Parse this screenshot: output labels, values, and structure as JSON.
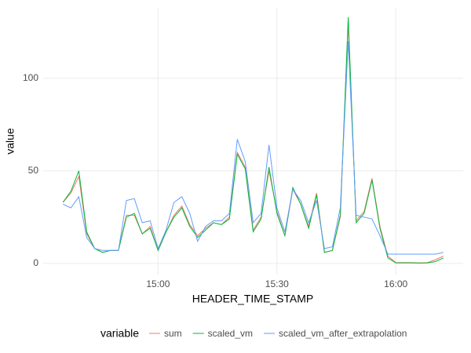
{
  "chart_data": {
    "type": "line",
    "x_label": "HEADER_TIME_STAMP",
    "y_label": "value",
    "legend_title": "variable",
    "legend_position": "bottom",
    "grid": true,
    "x": [
      "14:36",
      "14:38",
      "14:40",
      "14:42",
      "14:44",
      "14:46",
      "14:48",
      "14:50",
      "14:52",
      "14:54",
      "14:56",
      "14:58",
      "15:00",
      "15:02",
      "15:04",
      "15:06",
      "15:08",
      "15:10",
      "15:12",
      "15:14",
      "15:16",
      "15:18",
      "15:20",
      "15:22",
      "15:24",
      "15:26",
      "15:28",
      "15:30",
      "15:32",
      "15:34",
      "15:36",
      "15:38",
      "15:40",
      "15:42",
      "15:44",
      "15:46",
      "15:48",
      "15:50",
      "15:52",
      "15:54",
      "15:56",
      "15:58",
      "16:00",
      "16:02",
      "16:04",
      "16:06",
      "16:08",
      "16:10",
      "16:12"
    ],
    "xlim": [
      "14:31",
      "16:17"
    ],
    "xticks": [
      "15:00",
      "15:30",
      "16:00"
    ],
    "ylim": [
      -6,
      138
    ],
    "yticks": [
      0,
      50,
      100
    ],
    "series": [
      {
        "name": "sum",
        "color": "#F8766D",
        "values": [
          33,
          38,
          47,
          16,
          8,
          6,
          7,
          7,
          26,
          26,
          16,
          20,
          7,
          17,
          26,
          31,
          21,
          15,
          19,
          22,
          21,
          25,
          60,
          52,
          18,
          25,
          50,
          28,
          15,
          40,
          32,
          20,
          38,
          6,
          7,
          25,
          130,
          23,
          28,
          46,
          20,
          4,
          0.5,
          0.5,
          0.5,
          0.3,
          0.5,
          2,
          4
        ]
      },
      {
        "name": "scaled_vm",
        "color": "#00BA38",
        "values": [
          33,
          39,
          50,
          17,
          8,
          6,
          7,
          7,
          25,
          27,
          16,
          19,
          7,
          17,
          25,
          30,
          20,
          14,
          18,
          22,
          21,
          24,
          59,
          51,
          17,
          24,
          52,
          27,
          15,
          41,
          32,
          19,
          37,
          6,
          7,
          26,
          133,
          22,
          27,
          45,
          19,
          3,
          0.3,
          0.3,
          0.3,
          0.2,
          0.3,
          1,
          3
        ]
      },
      {
        "name": "scaled_vm_after_extrapolation",
        "color": "#619CFF",
        "values": [
          32,
          30,
          36,
          14,
          8,
          7,
          7,
          7,
          34,
          35,
          22,
          23,
          8,
          18,
          33,
          36,
          27,
          12,
          20,
          23,
          23,
          27,
          67,
          55,
          22,
          27,
          64,
          30,
          17,
          40,
          34,
          22,
          34,
          8,
          9,
          30,
          120,
          26,
          25,
          24,
          15,
          5,
          5,
          5,
          5,
          5,
          5,
          5,
          6
        ]
      }
    ]
  }
}
